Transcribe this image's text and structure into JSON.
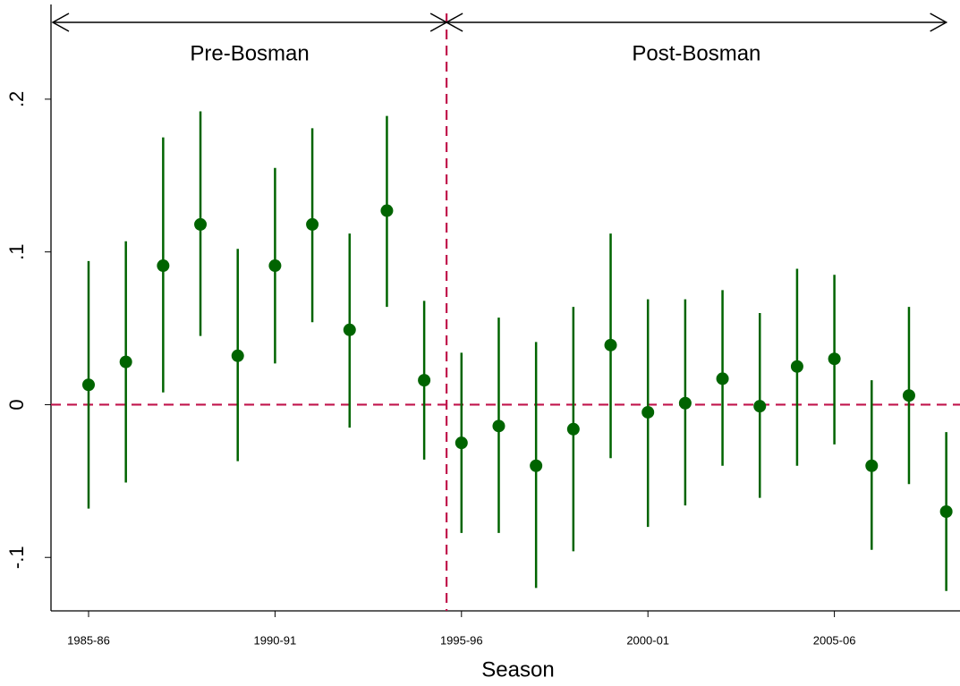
{
  "chart_data": {
    "type": "errorbar",
    "xlabel": "Season",
    "categories": [
      "1985-86",
      null,
      null,
      null,
      null,
      "1990-91",
      null,
      null,
      null,
      null,
      "1995-96",
      null,
      null,
      null,
      null,
      "2000-01",
      null,
      null,
      null,
      null,
      "2005-06",
      null,
      null,
      null
    ],
    "series": [
      {
        "color": "#006400",
        "values": [
          0.013,
          0.028,
          0.091,
          0.118,
          0.032,
          0.091,
          0.118,
          0.049,
          0.127,
          0.016,
          -0.025,
          -0.014,
          -0.04,
          -0.016,
          0.039,
          -0.005,
          0.001,
          0.017,
          -0.001,
          0.025,
          0.03,
          -0.04,
          0.006,
          -0.07
        ],
        "lower": [
          -0.068,
          -0.051,
          0.008,
          0.045,
          -0.037,
          0.027,
          0.054,
          -0.015,
          0.064,
          -0.036,
          -0.084,
          -0.084,
          -0.12,
          -0.096,
          -0.035,
          -0.08,
          -0.066,
          -0.04,
          -0.061,
          -0.04,
          -0.026,
          -0.095,
          -0.052,
          -0.122
        ],
        "upper": [
          0.094,
          0.107,
          0.175,
          0.192,
          0.102,
          0.155,
          0.181,
          0.112,
          0.189,
          0.068,
          0.034,
          0.057,
          0.041,
          0.064,
          0.112,
          0.069,
          0.069,
          0.075,
          0.06,
          0.089,
          0.085,
          0.016,
          0.064,
          -0.018
        ]
      }
    ],
    "ylim": [
      -0.135,
      0.262
    ],
    "yticks": [
      {
        "value": -0.1,
        "label": "-.1"
      },
      {
        "value": 0,
        "label": "0"
      },
      {
        "value": 0.1,
        "label": ".1"
      },
      {
        "value": 0.2,
        "label": ".2"
      }
    ],
    "reference_lines": {
      "y": 0,
      "x": 9.6,
      "color": "#c0144c"
    },
    "periods": [
      {
        "label": "Pre-Bosman"
      },
      {
        "label": "Post-Bosman"
      }
    ]
  }
}
